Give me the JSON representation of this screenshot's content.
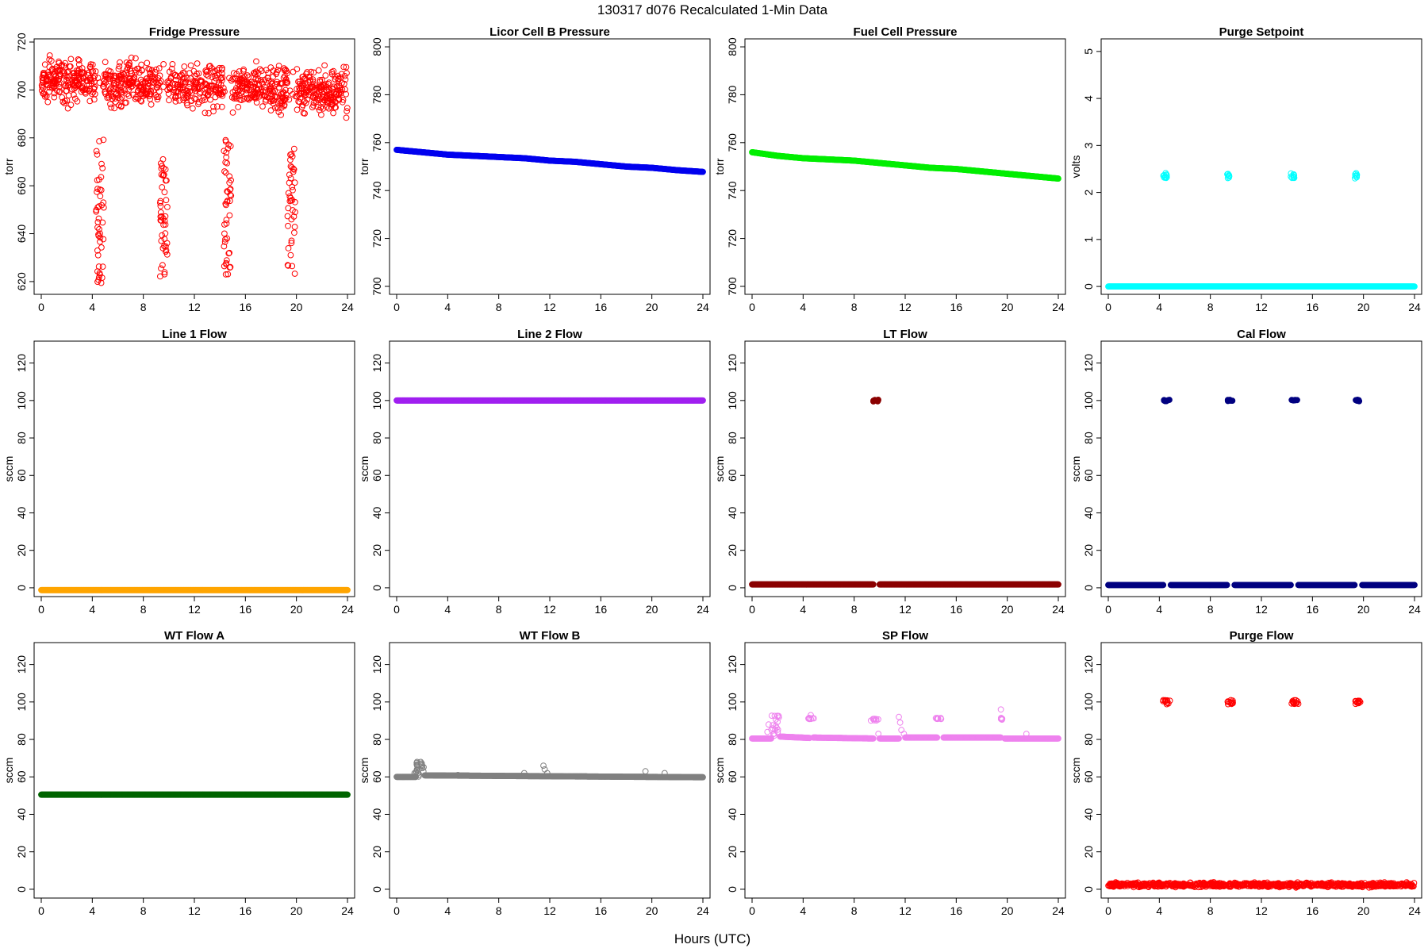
{
  "figure": {
    "title": "130317    d076    Recalculated 1-Min Data",
    "xlabel": "Hours (UTC)"
  },
  "chart_data": [
    {
      "type": "scatter",
      "title": "Fridge Pressure",
      "ylabel": "torr",
      "color": "#ff0000",
      "filled": false,
      "xlim": [
        0,
        24
      ],
      "xticks": [
        0,
        4,
        8,
        12,
        16,
        20,
        24
      ],
      "ylim": [
        616,
        720
      ],
      "yticks": [
        620,
        640,
        660,
        680,
        700,
        720
      ],
      "series": [
        {
          "kind": "noise",
          "x": [
            0,
            24
          ],
          "center": [
            703,
            698
          ],
          "spread": [
            -12,
            14
          ],
          "count": 1100,
          "gaps": [
            [
              4.3,
              4.9
            ],
            [
              9.3,
              9.9
            ],
            [
              14.3,
              14.9
            ],
            [
              19.3,
              19.9
            ]
          ]
        },
        {
          "kind": "cluster",
          "x": [
            4.3,
            4.9
          ],
          "y": [
            619,
            680
          ],
          "count": 45
        },
        {
          "kind": "cluster",
          "x": [
            9.3,
            9.9
          ],
          "y": [
            622,
            674
          ],
          "count": 45
        },
        {
          "kind": "cluster",
          "x": [
            14.3,
            14.9
          ],
          "y": [
            621,
            680
          ],
          "count": 45
        },
        {
          "kind": "cluster",
          "x": [
            19.3,
            19.9
          ],
          "y": [
            623,
            676
          ],
          "count": 40
        }
      ]
    },
    {
      "type": "scatter",
      "title": "Licor Cell B Pressure",
      "ylabel": "torr",
      "color": "#0000ee",
      "filled": true,
      "xlim": [
        0,
        24
      ],
      "xticks": [
        0,
        4,
        8,
        12,
        16,
        20,
        24
      ],
      "ylim": [
        698,
        802
      ],
      "yticks": [
        700,
        720,
        740,
        760,
        780,
        800
      ],
      "series": [
        {
          "kind": "line",
          "x": [
            0,
            2,
            4,
            6,
            8,
            10,
            12,
            14,
            16,
            18,
            20,
            22,
            24
          ],
          "y": [
            757,
            756,
            755,
            754.5,
            754,
            753.5,
            752.5,
            752,
            751,
            750,
            749.5,
            748.5,
            747.8
          ]
        }
      ]
    },
    {
      "type": "scatter",
      "title": "Fuel Cell Pressure",
      "ylabel": "torr",
      "color": "#00ee00",
      "filled": true,
      "xlim": [
        0,
        24
      ],
      "xticks": [
        0,
        4,
        8,
        12,
        16,
        20,
        24
      ],
      "ylim": [
        698,
        802
      ],
      "yticks": [
        700,
        720,
        740,
        760,
        780,
        800
      ],
      "series": [
        {
          "kind": "line",
          "x": [
            0,
            2,
            4,
            6,
            8,
            10,
            12,
            14,
            16,
            18,
            20,
            22,
            24
          ],
          "y": [
            756,
            754.5,
            753.5,
            753,
            752.5,
            751.5,
            750.5,
            749.5,
            749,
            748,
            747,
            746,
            745
          ]
        }
      ]
    },
    {
      "type": "scatter",
      "title": "Purge Setpoint",
      "ylabel": "volts",
      "color": "#00ffff",
      "filled": false,
      "xlim": [
        0,
        24
      ],
      "xticks": [
        0,
        4,
        8,
        12,
        16,
        20,
        24
      ],
      "ylim": [
        -0.1,
        5.2
      ],
      "yticks": [
        0,
        1,
        2,
        3,
        4,
        5
      ],
      "series": [
        {
          "kind": "line",
          "x": [
            0,
            24
          ],
          "y": [
            0,
            0
          ],
          "count": 700
        },
        {
          "kind": "cluster",
          "x": [
            4.3,
            4.6
          ],
          "y": [
            2.3,
            2.42
          ],
          "count": 10
        },
        {
          "kind": "cluster",
          "x": [
            9.3,
            9.5
          ],
          "y": [
            2.3,
            2.42
          ],
          "count": 8
        },
        {
          "kind": "cluster",
          "x": [
            14.3,
            14.6
          ],
          "y": [
            2.3,
            2.42
          ],
          "count": 10
        },
        {
          "kind": "cluster",
          "x": [
            19.3,
            19.5
          ],
          "y": [
            2.3,
            2.42
          ],
          "count": 7
        }
      ]
    },
    {
      "type": "scatter",
      "title": "Line 1 Flow",
      "ylabel": "sccm",
      "color": "#ffa500",
      "filled": true,
      "xlim": [
        0,
        24
      ],
      "xticks": [
        0,
        4,
        8,
        12,
        16,
        20,
        24
      ],
      "ylim": [
        -3,
        130
      ],
      "yticks": [
        0,
        20,
        40,
        60,
        80,
        100,
        120
      ],
      "series": [
        {
          "kind": "line",
          "x": [
            0,
            24
          ],
          "y": [
            -1.2,
            -1.2
          ]
        }
      ]
    },
    {
      "type": "scatter",
      "title": "Line 2 Flow",
      "ylabel": "sccm",
      "color": "#a020f0",
      "filled": true,
      "xlim": [
        0,
        24
      ],
      "xticks": [
        0,
        4,
        8,
        12,
        16,
        20,
        24
      ],
      "ylim": [
        -3,
        130
      ],
      "yticks": [
        0,
        20,
        40,
        60,
        80,
        100,
        120
      ],
      "series": [
        {
          "kind": "line",
          "x": [
            0,
            24
          ],
          "y": [
            100,
            100
          ]
        }
      ]
    },
    {
      "type": "scatter",
      "title": "LT Flow",
      "ylabel": "sccm",
      "color": "#8b0000",
      "filled": true,
      "xlim": [
        0,
        24
      ],
      "xticks": [
        0,
        4,
        8,
        12,
        16,
        20,
        24
      ],
      "ylim": [
        -3,
        130
      ],
      "yticks": [
        0,
        20,
        40,
        60,
        80,
        100,
        120
      ],
      "series": [
        {
          "kind": "line",
          "x": [
            0,
            9.5
          ],
          "y": [
            1.8,
            1.8
          ]
        },
        {
          "kind": "line",
          "x": [
            10,
            24
          ],
          "y": [
            1.8,
            1.8
          ]
        },
        {
          "kind": "cluster",
          "x": [
            9.5,
            9.9
          ],
          "y": [
            99.5,
            100.5
          ],
          "count": 8
        }
      ]
    },
    {
      "type": "scatter",
      "title": "Cal Flow",
      "ylabel": "sccm",
      "color": "#000080",
      "filled": true,
      "xlim": [
        0,
        24
      ],
      "xticks": [
        0,
        4,
        8,
        12,
        16,
        20,
        24
      ],
      "ylim": [
        -3,
        130
      ],
      "yticks": [
        0,
        20,
        40,
        60,
        80,
        100,
        120
      ],
      "series": [
        {
          "kind": "line",
          "x": [
            0,
            4.3
          ],
          "y": [
            1.5,
            1.5
          ]
        },
        {
          "kind": "line",
          "x": [
            4.9,
            9.3
          ],
          "y": [
            1.5,
            1.5
          ]
        },
        {
          "kind": "line",
          "x": [
            9.9,
            14.3
          ],
          "y": [
            1.5,
            1.5
          ]
        },
        {
          "kind": "line",
          "x": [
            14.9,
            19.3
          ],
          "y": [
            1.5,
            1.5
          ]
        },
        {
          "kind": "line",
          "x": [
            19.9,
            24
          ],
          "y": [
            1.5,
            1.5
          ]
        },
        {
          "kind": "cluster",
          "x": [
            4.35,
            4.85
          ],
          "y": [
            99.6,
            100.4
          ],
          "count": 8
        },
        {
          "kind": "cluster",
          "x": [
            9.35,
            9.75
          ],
          "y": [
            99.6,
            100.4
          ],
          "count": 7
        },
        {
          "kind": "cluster",
          "x": [
            14.35,
            14.85
          ],
          "y": [
            99.6,
            100.4
          ],
          "count": 8
        },
        {
          "kind": "cluster",
          "x": [
            19.35,
            19.75
          ],
          "y": [
            99.6,
            100.4
          ],
          "count": 7
        }
      ]
    },
    {
      "type": "scatter",
      "title": "WT Flow A",
      "ylabel": "sccm",
      "color": "#006400",
      "filled": true,
      "xlim": [
        0,
        24
      ],
      "xticks": [
        0,
        4,
        8,
        12,
        16,
        20,
        24
      ],
      "ylim": [
        -3,
        130
      ],
      "yticks": [
        0,
        20,
        40,
        60,
        80,
        100,
        120
      ],
      "series": [
        {
          "kind": "line",
          "x": [
            0,
            24
          ],
          "y": [
            50.5,
            50.5
          ]
        }
      ]
    },
    {
      "type": "scatter",
      "title": "WT Flow B",
      "ylabel": "sccm",
      "color": "#808080",
      "filled": false,
      "xlim": [
        0,
        24
      ],
      "xticks": [
        0,
        4,
        8,
        12,
        16,
        20,
        24
      ],
      "ylim": [
        -3,
        130
      ],
      "yticks": [
        0,
        20,
        40,
        60,
        80,
        100,
        120
      ],
      "series": [
        {
          "kind": "line",
          "x": [
            0,
            1.5
          ],
          "y": [
            60,
            60
          ]
        },
        {
          "kind": "line",
          "x": [
            2.2,
            24
          ],
          "y": [
            60.8,
            59.8
          ]
        },
        {
          "kind": "cluster",
          "x": [
            1.5,
            2.2
          ],
          "y": [
            60,
            68
          ],
          "count": 18
        },
        {
          "kind": "points",
          "x": [
            1.4,
            1.6,
            1.9,
            2.0,
            4.8,
            10,
            11.5,
            11.6,
            11.8,
            19.5,
            21
          ],
          "y": [
            62,
            64,
            67,
            66,
            61,
            62,
            66,
            64,
            62,
            63,
            62
          ]
        }
      ]
    },
    {
      "type": "scatter",
      "title": "SP Flow",
      "ylabel": "sccm",
      "color": "#ee82ee",
      "filled": false,
      "xlim": [
        0,
        24
      ],
      "xticks": [
        0,
        4,
        8,
        12,
        16,
        20,
        24
      ],
      "ylim": [
        -3,
        130
      ],
      "yticks": [
        0,
        20,
        40,
        60,
        80,
        100,
        120
      ],
      "series": [
        {
          "kind": "line",
          "x": [
            0,
            1.5
          ],
          "y": [
            80.5,
            80.5
          ]
        },
        {
          "kind": "line",
          "x": [
            2.2,
            4.5
          ],
          "y": [
            81.5,
            80.8
          ]
        },
        {
          "kind": "line",
          "x": [
            4.8,
            9.5
          ],
          "y": [
            81,
            80.5
          ]
        },
        {
          "kind": "line",
          "x": [
            10,
            11.5
          ],
          "y": [
            80.5,
            80.5
          ]
        },
        {
          "kind": "line",
          "x": [
            12,
            14.5
          ],
          "y": [
            81,
            81
          ]
        },
        {
          "kind": "line",
          "x": [
            15,
            19.5
          ],
          "y": [
            81,
            81
          ]
        },
        {
          "kind": "line",
          "x": [
            19.8,
            24
          ],
          "y": [
            80.5,
            80.5
          ]
        },
        {
          "kind": "cluster",
          "x": [
            1.5,
            2.1
          ],
          "y": [
            82,
            93
          ],
          "count": 18
        },
        {
          "kind": "cluster",
          "x": [
            4.3,
            4.9
          ],
          "y": [
            90.8,
            92
          ],
          "count": 8
        },
        {
          "kind": "cluster",
          "x": [
            9.3,
            9.9
          ],
          "y": [
            90,
            91.5
          ],
          "count": 8
        },
        {
          "kind": "cluster",
          "x": [
            14.3,
            14.9
          ],
          "y": [
            90.8,
            91.5
          ],
          "count": 8
        },
        {
          "kind": "cluster",
          "x": [
            19.3,
            19.7
          ],
          "y": [
            90.5,
            91.5
          ],
          "count": 5
        },
        {
          "kind": "points",
          "x": [
            1.2,
            1.3,
            4.6,
            9.9,
            11.5,
            11.6,
            11.7,
            11.9,
            19.5,
            21.5
          ],
          "y": [
            84,
            88,
            93,
            83,
            92,
            89,
            85,
            83,
            96,
            83
          ]
        }
      ]
    },
    {
      "type": "scatter",
      "title": "Purge Flow",
      "ylabel": "sccm",
      "color": "#ff0000",
      "filled": false,
      "xlim": [
        0,
        24
      ],
      "xticks": [
        0,
        4,
        8,
        12,
        16,
        20,
        24
      ],
      "ylim": [
        -3,
        130
      ],
      "yticks": [
        0,
        20,
        40,
        60,
        80,
        100,
        120
      ],
      "series": [
        {
          "kind": "noise",
          "x": [
            0,
            24
          ],
          "center": [
            2.2,
            2.2
          ],
          "spread": [
            -1.5,
            1.8
          ],
          "count": 800,
          "gaps": []
        },
        {
          "kind": "cluster",
          "x": [
            4.3,
            4.9
          ],
          "y": [
            98.8,
            101
          ],
          "count": 14
        },
        {
          "kind": "cluster",
          "x": [
            9.3,
            9.8
          ],
          "y": [
            98.8,
            101
          ],
          "count": 12
        },
        {
          "kind": "cluster",
          "x": [
            14.3,
            14.9
          ],
          "y": [
            98.8,
            101
          ],
          "count": 14
        },
        {
          "kind": "cluster",
          "x": [
            19.3,
            19.8
          ],
          "y": [
            98.8,
            101
          ],
          "count": 12
        }
      ]
    }
  ]
}
